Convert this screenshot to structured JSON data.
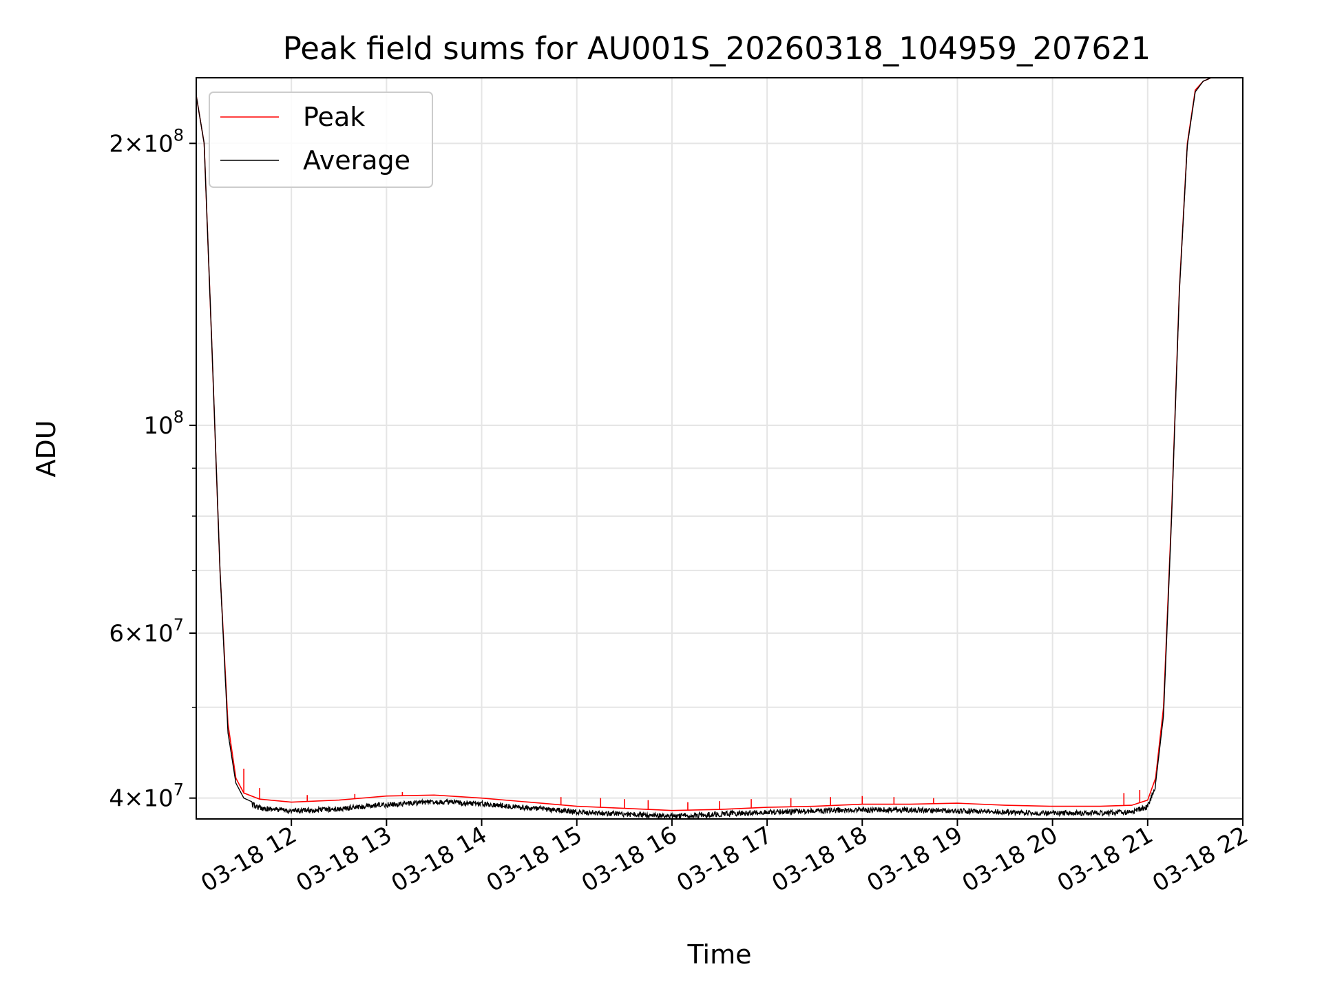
{
  "chart_data": {
    "type": "line",
    "title": "Peak field sums for AU001S_20260318_104959_207621",
    "xlabel": "Time",
    "ylabel": "ADU",
    "y_scale": "log",
    "ylim": [
      38000000,
      235000000
    ],
    "xlim": [
      "2026-03-18 11:00",
      "2026-03-18 22:00"
    ],
    "grid": true,
    "legend_position": "top-left",
    "x_ticks": [
      {
        "value": "2026-03-18 12:00",
        "label": "03-18 12"
      },
      {
        "value": "2026-03-18 13:00",
        "label": "03-18 13"
      },
      {
        "value": "2026-03-18 14:00",
        "label": "03-18 14"
      },
      {
        "value": "2026-03-18 15:00",
        "label": "03-18 15"
      },
      {
        "value": "2026-03-18 16:00",
        "label": "03-18 16"
      },
      {
        "value": "2026-03-18 17:00",
        "label": "03-18 17"
      },
      {
        "value": "2026-03-18 18:00",
        "label": "03-18 18"
      },
      {
        "value": "2026-03-18 19:00",
        "label": "03-18 19"
      },
      {
        "value": "2026-03-18 20:00",
        "label": "03-18 20"
      },
      {
        "value": "2026-03-18 21:00",
        "label": "03-18 21"
      },
      {
        "value": "2026-03-18 22:00",
        "label": "03-18 22"
      }
    ],
    "y_ticks": [
      {
        "value": 40000000,
        "base": "4",
        "times": "×",
        "mant": "10",
        "exp": "7"
      },
      {
        "value": 60000000,
        "base": "6",
        "times": "×",
        "mant": "10",
        "exp": "7"
      },
      {
        "value": 100000000,
        "base": "",
        "times": "",
        "mant": "10",
        "exp": "8"
      },
      {
        "value": 200000000,
        "base": "2",
        "times": "×",
        "mant": "10",
        "exp": "8"
      }
    ],
    "y_minor_ticks": [
      50000000,
      70000000,
      80000000,
      90000000
    ],
    "series": [
      {
        "name": "Peak",
        "color": "#ff0000",
        "x": [
          "2026-03-18 11:00",
          "2026-03-18 11:05",
          "2026-03-18 11:10",
          "2026-03-18 11:15",
          "2026-03-18 11:20",
          "2026-03-18 11:25",
          "2026-03-18 11:30",
          "2026-03-18 11:40",
          "2026-03-18 12:00",
          "2026-03-18 12:30",
          "2026-03-18 13:00",
          "2026-03-18 13:30",
          "2026-03-18 14:00",
          "2026-03-18 14:30",
          "2026-03-18 15:00",
          "2026-03-18 15:30",
          "2026-03-18 16:00",
          "2026-03-18 16:30",
          "2026-03-18 17:00",
          "2026-03-18 17:30",
          "2026-03-18 18:00",
          "2026-03-18 18:30",
          "2026-03-18 19:00",
          "2026-03-18 19:30",
          "2026-03-18 20:00",
          "2026-03-18 20:30",
          "2026-03-18 20:50",
          "2026-03-18 21:00",
          "2026-03-18 21:05",
          "2026-03-18 21:10",
          "2026-03-18 21:15",
          "2026-03-18 21:20",
          "2026-03-18 21:25",
          "2026-03-18 21:30",
          "2026-03-18 21:35",
          "2026-03-18 21:40",
          "2026-03-18 22:00"
        ],
        "values": [
          225000000,
          200000000,
          120000000,
          70000000,
          48000000,
          42000000,
          40500000,
          39900000,
          39600000,
          39800000,
          40200000,
          40300000,
          40000000,
          39600000,
          39200000,
          39000000,
          38800000,
          38900000,
          39100000,
          39200000,
          39400000,
          39400000,
          39500000,
          39300000,
          39200000,
          39200000,
          39300000,
          39800000,
          42000000,
          50000000,
          80000000,
          140000000,
          200000000,
          228000000,
          233000000,
          235000000,
          235000000
        ],
        "spikes": [
          {
            "x": "2026-03-18 11:30",
            "value": 43000000
          },
          {
            "x": "2026-03-18 11:40",
            "value": 41000000
          },
          {
            "x": "2026-03-18 12:10",
            "value": 40300000
          },
          {
            "x": "2026-03-18 12:40",
            "value": 40400000
          },
          {
            "x": "2026-03-18 13:10",
            "value": 40600000
          },
          {
            "x": "2026-03-18 14:50",
            "value": 40100000
          },
          {
            "x": "2026-03-18 15:15",
            "value": 40000000
          },
          {
            "x": "2026-03-18 15:30",
            "value": 39900000
          },
          {
            "x": "2026-03-18 15:45",
            "value": 39800000
          },
          {
            "x": "2026-03-18 16:10",
            "value": 39600000
          },
          {
            "x": "2026-03-18 16:30",
            "value": 39700000
          },
          {
            "x": "2026-03-18 16:50",
            "value": 39900000
          },
          {
            "x": "2026-03-18 17:15",
            "value": 40000000
          },
          {
            "x": "2026-03-18 17:40",
            "value": 40100000
          },
          {
            "x": "2026-03-18 18:00",
            "value": 40200000
          },
          {
            "x": "2026-03-18 18:20",
            "value": 40100000
          },
          {
            "x": "2026-03-18 18:45",
            "value": 40000000
          },
          {
            "x": "2026-03-18 20:45",
            "value": 40500000
          },
          {
            "x": "2026-03-18 20:55",
            "value": 40800000
          }
        ]
      },
      {
        "name": "Average",
        "color": "#000000",
        "x": [
          "2026-03-18 11:00",
          "2026-03-18 11:05",
          "2026-03-18 11:10",
          "2026-03-18 11:15",
          "2026-03-18 11:20",
          "2026-03-18 11:25",
          "2026-03-18 11:30",
          "2026-03-18 11:40",
          "2026-03-18 12:00",
          "2026-03-18 12:30",
          "2026-03-18 13:00",
          "2026-03-18 13:30",
          "2026-03-18 14:00",
          "2026-03-18 14:30",
          "2026-03-18 15:00",
          "2026-03-18 15:30",
          "2026-03-18 16:00",
          "2026-03-18 16:30",
          "2026-03-18 17:00",
          "2026-03-18 17:30",
          "2026-03-18 18:00",
          "2026-03-18 18:30",
          "2026-03-18 19:00",
          "2026-03-18 19:30",
          "2026-03-18 20:00",
          "2026-03-18 20:30",
          "2026-03-18 20:50",
          "2026-03-18 21:00",
          "2026-03-18 21:05",
          "2026-03-18 21:10",
          "2026-03-18 21:15",
          "2026-03-18 21:20",
          "2026-03-18 21:25",
          "2026-03-18 21:30",
          "2026-03-18 21:35",
          "2026-03-18 21:40",
          "2026-03-18 22:00"
        ],
        "values": [
          225000000,
          200000000,
          120000000,
          70000000,
          47000000,
          41500000,
          40000000,
          39300000,
          39000000,
          39200000,
          39600000,
          39900000,
          39700000,
          39300000,
          38900000,
          38700000,
          38500000,
          38700000,
          38900000,
          39000000,
          39100000,
          39100000,
          39000000,
          38900000,
          38800000,
          38800000,
          38900000,
          39400000,
          41500000,
          49000000,
          79000000,
          139000000,
          199000000,
          227000000,
          233000000,
          235000000,
          235000000
        ],
        "noise_amplitude": 500000
      }
    ]
  }
}
